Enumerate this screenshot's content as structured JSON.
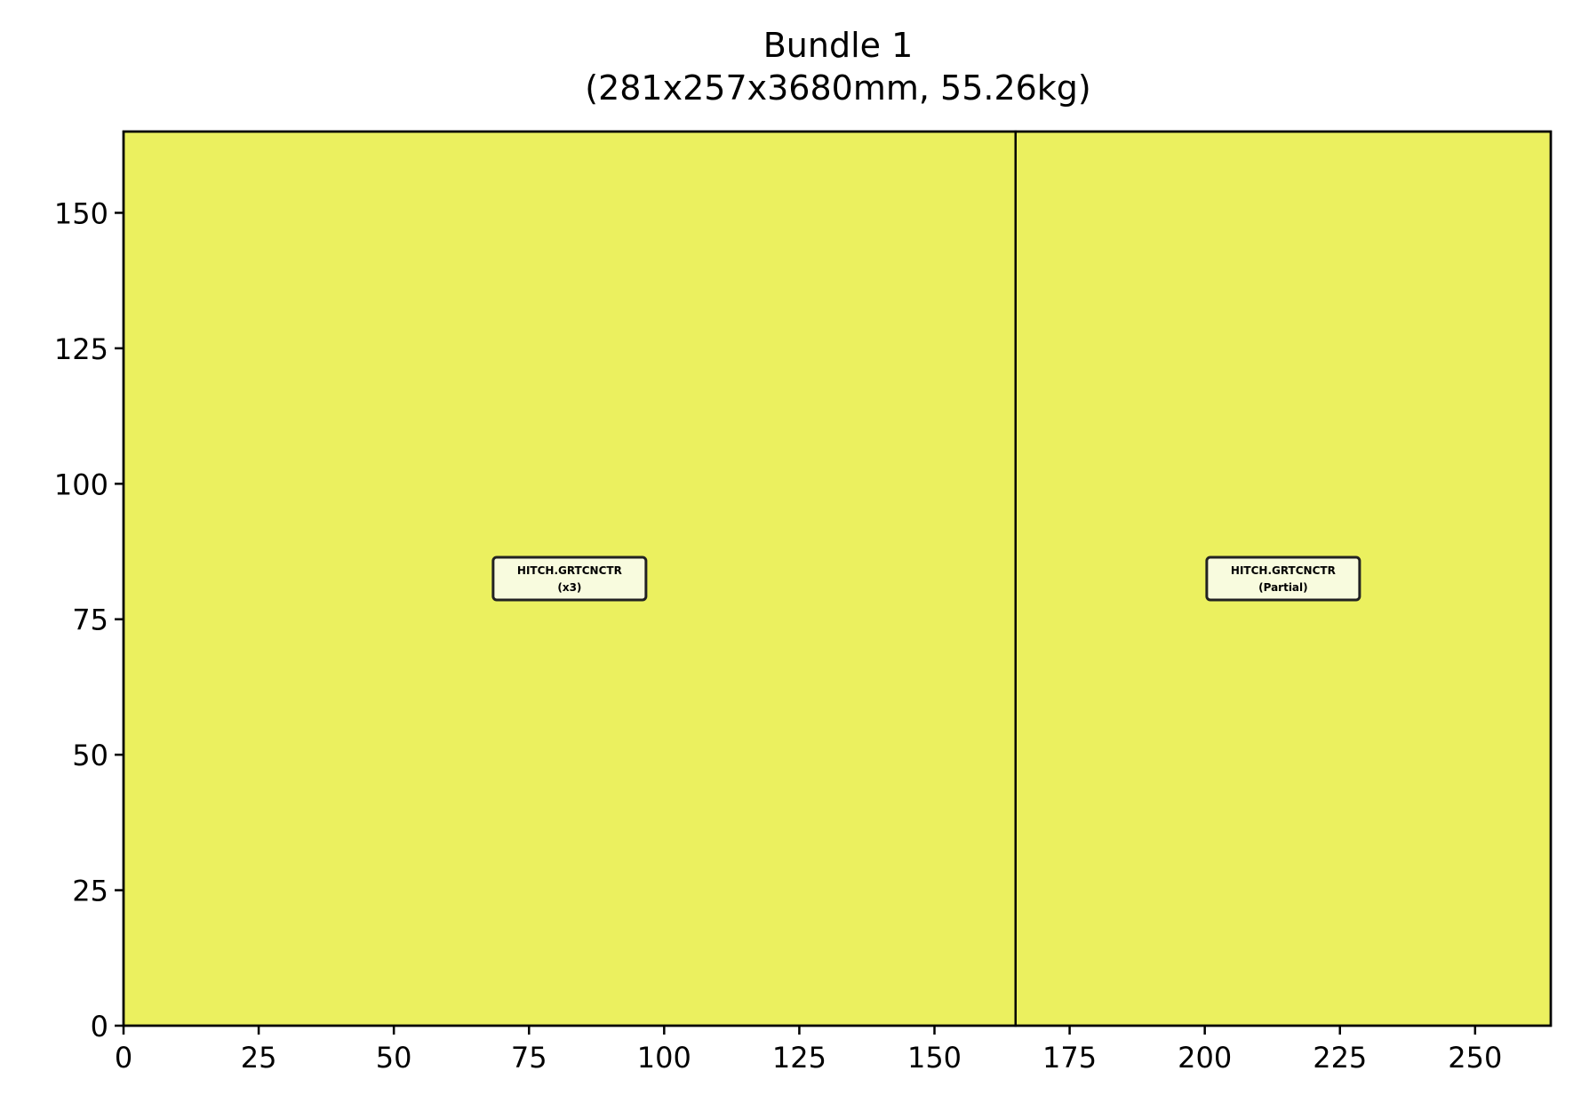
{
  "chart_data": {
    "type": "rectangles",
    "title": "Bundle 1",
    "subtitle": "(281x257x3680mm, 55.26kg)",
    "xlabel": "",
    "ylabel": "",
    "xlim": [
      0,
      264
    ],
    "ylim": [
      0,
      165
    ],
    "xticks": [
      0,
      25,
      50,
      75,
      100,
      125,
      150,
      175,
      200,
      225,
      250
    ],
    "yticks": [
      0,
      25,
      50,
      75,
      100,
      125,
      150
    ],
    "grid": false,
    "fill_color": "#ebf05f",
    "label_box_color": "#f8fbde",
    "edge_color": "#000000",
    "rects": [
      {
        "x0": 0,
        "x1": 165,
        "y0": 0,
        "y1": 165,
        "label_line1": "HITCH.GRTCNCTR",
        "label_line2": "(x3)"
      },
      {
        "x0": 165,
        "x1": 264,
        "y0": 0,
        "y1": 165,
        "label_line1": "HITCH.GRTCNCTR",
        "label_line2": "(Partial)"
      }
    ]
  }
}
